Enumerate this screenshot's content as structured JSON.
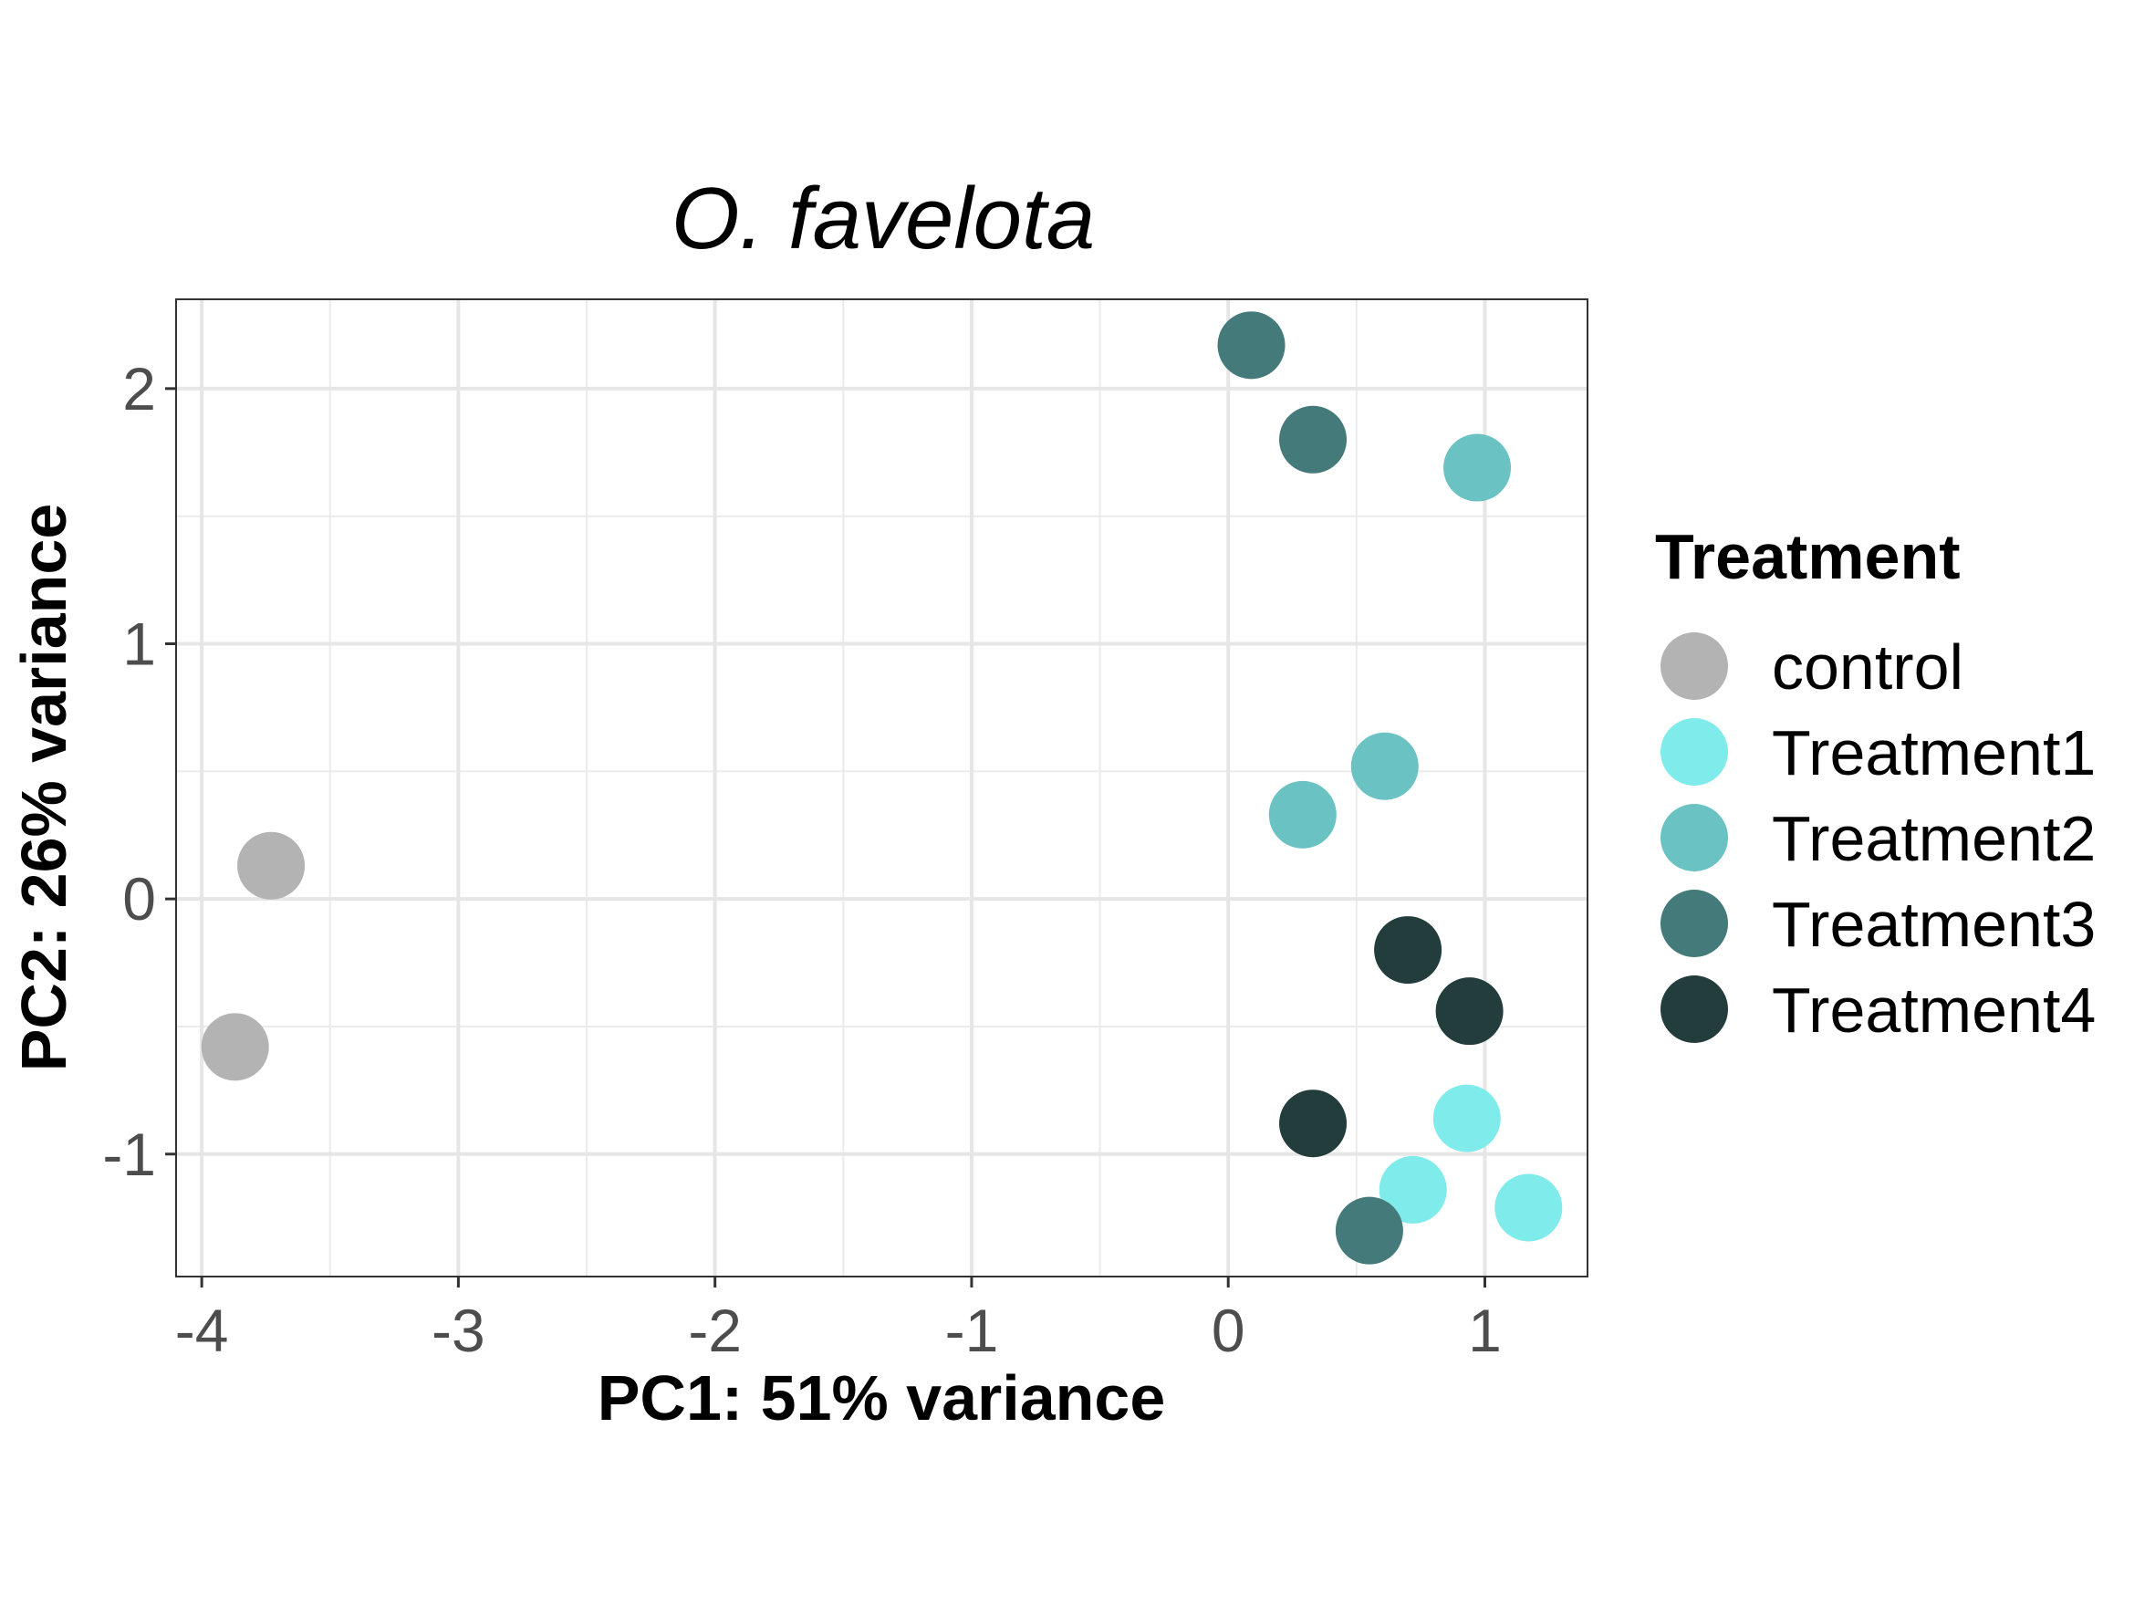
{
  "chart_data": {
    "type": "scatter",
    "title": "O. favelota",
    "xlabel": "PC1: 51% variance",
    "ylabel": "PC2: 26% variance",
    "xlim": [
      -4.1,
      1.4
    ],
    "ylim": [
      -1.48,
      2.35
    ],
    "x_ticks": [
      -4,
      -3,
      -2,
      -1,
      0,
      1
    ],
    "x_tick_labels": [
      "-4",
      "-3",
      "-2",
      "-1",
      "0",
      "1"
    ],
    "y_ticks": [
      -1,
      0,
      1,
      2
    ],
    "y_tick_labels": [
      "-1",
      "0",
      "1",
      "2"
    ],
    "grid": true,
    "legend": {
      "title": "Treatment",
      "placement": "right"
    },
    "series": [
      {
        "name": "control",
        "color": "#b3b3b3",
        "points": [
          [
            -3.73,
            0.13
          ],
          [
            -3.87,
            -0.58
          ]
        ]
      },
      {
        "name": "Treatment1",
        "color": "#80ebeb",
        "points": [
          [
            0.93,
            -0.86
          ],
          [
            0.72,
            -1.14
          ],
          [
            1.17,
            -1.21
          ]
        ]
      },
      {
        "name": "Treatment2",
        "color": "#6bc2c2",
        "points": [
          [
            0.97,
            1.69
          ],
          [
            0.61,
            0.52
          ],
          [
            0.29,
            0.33
          ]
        ]
      },
      {
        "name": "Treatment3",
        "color": "#447a7a",
        "points": [
          [
            0.09,
            2.17
          ],
          [
            0.33,
            1.8
          ],
          [
            0.55,
            -1.3
          ]
        ]
      },
      {
        "name": "Treatment4",
        "color": "#233d3d",
        "points": [
          [
            0.7,
            -0.2
          ],
          [
            0.94,
            -0.44
          ],
          [
            0.33,
            -0.88
          ]
        ]
      }
    ]
  }
}
